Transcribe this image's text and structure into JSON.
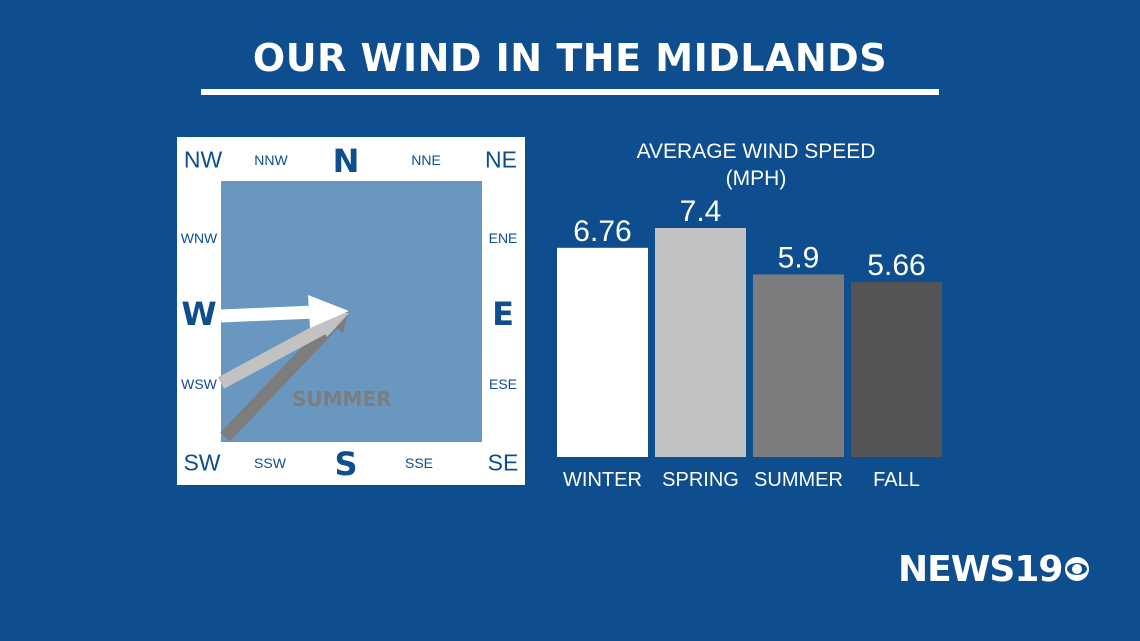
{
  "title": "OUR WIND IN THE MIDLANDS",
  "compass": {
    "cardinal": {
      "N": "N",
      "E": "E",
      "S": "S",
      "W": "W"
    },
    "intercardinal": {
      "NW": "NW",
      "NE": "NE",
      "SW": "SW",
      "SE": "SE"
    },
    "minor": {
      "NNW": "NNW",
      "NNE": "NNE",
      "WNW": "WNW",
      "ENE": "ENE",
      "WSW": "WSW",
      "ESE": "ESE",
      "SSW": "SSW",
      "SSE": "SSE"
    },
    "season_label": "SUMMER",
    "arrow_colors": {
      "winter": "#ffffff",
      "spring": "#c2c2c2",
      "summer": "#7d7d7d"
    }
  },
  "chart_data": {
    "type": "bar",
    "title_lines": [
      "AVERAGE WIND SPEED",
      "(MPH)"
    ],
    "categories": [
      "WINTER",
      "SPRING",
      "SUMMER",
      "FALL"
    ],
    "values": [
      6.76,
      7.4,
      5.9,
      5.66
    ],
    "value_labels": [
      "6.76",
      "7.4",
      "5.9",
      "5.66"
    ],
    "colors": [
      "#ffffff",
      "#c2c2c2",
      "#7d7d7d",
      "#545454"
    ],
    "ylim": [
      0,
      7.4
    ],
    "grid": false
  },
  "logo": {
    "text": "NEWS19"
  }
}
